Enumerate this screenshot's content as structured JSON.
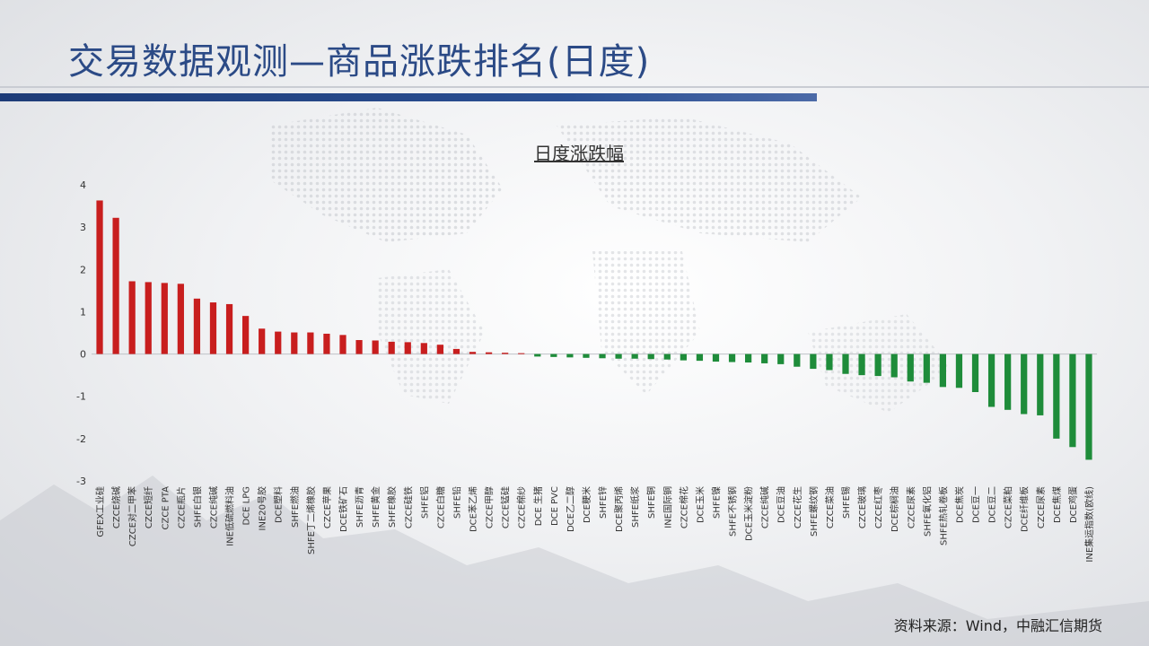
{
  "page": {
    "title": "交易数据观测—商品涨跌排名(日度)",
    "source": "资料来源：Wind，中融汇信期货",
    "colors": {
      "title": "#2b4a86",
      "rule": "#1d3b77",
      "positive": "#c81e1e",
      "negative": "#1e8c3a"
    }
  },
  "chart_data": {
    "type": "bar",
    "title": "日度涨跌幅",
    "xlabel": "",
    "ylabel": "",
    "ylim": [
      -3,
      4
    ],
    "yticks": [
      4,
      3,
      2,
      1,
      0,
      -1,
      -2,
      -3
    ],
    "grid": false,
    "categories": [
      "GFEX工业硅",
      "CZCE烧碱",
      "CZCE对二甲苯",
      "CZCE短纤",
      "CZCE PTA",
      "CZCE瓶片",
      "SHFE白银",
      "CZCE纯碱",
      "INE低硫燃料油",
      "DCE LPG",
      "INE20号胶",
      "DCE塑料",
      "SHFE燃油",
      "SHFE丁二烯橡胶",
      "CZCE苹果",
      "DCE铁矿石",
      "SHFE沥青",
      "SHFE黄金",
      "SHFE橡胶",
      "CZCE硅铁",
      "SHFE铝",
      "CZCE白糖",
      "SHFE铅",
      "DCE苯乙烯",
      "CZCE甲醇",
      "CZCE锰硅",
      "CZCE棉纱",
      "DCE 生猪",
      "DCE PVC",
      "DCE乙二醇",
      "DCE粳米",
      "SHFE锌",
      "DCE聚丙烯",
      "SHFE纸浆",
      "SHFE铜",
      "INE国际铜",
      "CZCE棉花",
      "DCE玉米",
      "SHFE镍",
      "SHFE不锈钢",
      "DCE玉米淀粉",
      "CZCE纯碱",
      "DCE豆油",
      "CZCE花生",
      "SHFE螺纹钢",
      "CZCE菜油",
      "SHFE锡",
      "CZCE玻璃",
      "CZCE红枣",
      "DCE棕榈油",
      "CZCE尿素",
      "SHFE氧化铝",
      "SHFE热轧卷板",
      "DCE焦炭",
      "DCE豆一",
      "DCE豆二",
      "CZCE菜粕",
      "DCE纤维板",
      "CZCE尿素",
      "DCE焦煤",
      "DCE鸡蛋",
      "INE集运指数(欧线)"
    ],
    "values": [
      3.63,
      3.22,
      1.72,
      1.7,
      1.68,
      1.66,
      1.31,
      1.22,
      1.18,
      0.9,
      0.6,
      0.53,
      0.51,
      0.51,
      0.48,
      0.45,
      0.33,
      0.32,
      0.29,
      0.28,
      0.26,
      0.22,
      0.12,
      0.05,
      0.04,
      0.03,
      0.02,
      -0.06,
      -0.07,
      -0.08,
      -0.09,
      -0.1,
      -0.11,
      -0.11,
      -0.12,
      -0.13,
      -0.15,
      -0.16,
      -0.18,
      -0.19,
      -0.2,
      -0.22,
      -0.24,
      -0.3,
      -0.35,
      -0.38,
      -0.47,
      -0.5,
      -0.52,
      -0.55,
      -0.65,
      -0.68,
      -0.78,
      -0.8,
      -0.9,
      -1.25,
      -1.32,
      -1.42,
      -1.45,
      -2.0,
      -2.2,
      -2.5
    ]
  }
}
